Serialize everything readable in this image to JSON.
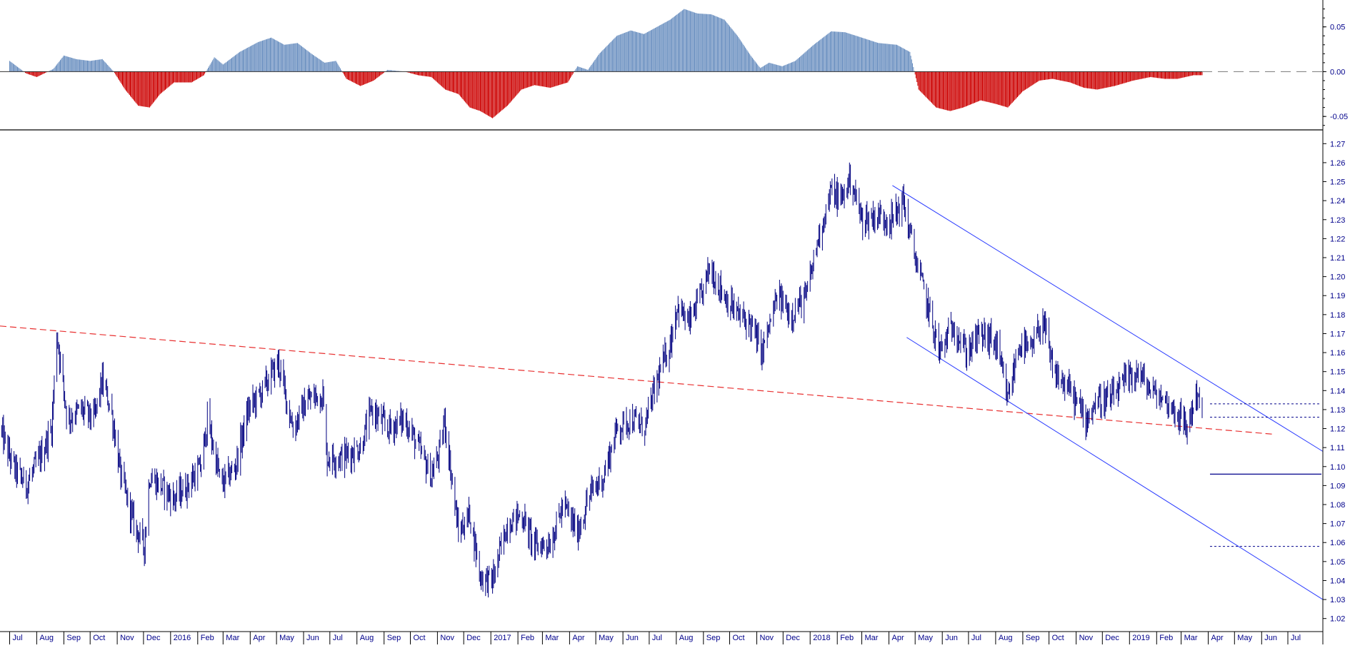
{
  "chart_data": [
    {
      "type": "bar",
      "panel": "oscillator",
      "ylim": [
        -0.065,
        0.08
      ],
      "y_ticks": [
        "0.05",
        "0.00",
        "-0.05"
      ],
      "y_tick_values": [
        0.05,
        0.0,
        -0.05
      ],
      "colors": {
        "positive": "#6a8fc0",
        "negative": "#cc0000",
        "zero_line": "#000000"
      },
      "description_points": [
        [
          "2015-07-01",
          0.012
        ],
        [
          "2015-07-20",
          -0.002
        ],
        [
          "2015-08-01",
          -0.006
        ],
        [
          "2015-08-20",
          0.003
        ],
        [
          "2015-09-01",
          0.018
        ],
        [
          "2015-09-15",
          0.014
        ],
        [
          "2015-10-01",
          0.012
        ],
        [
          "2015-10-15",
          0.014
        ],
        [
          "2015-10-28",
          0.0
        ],
        [
          "2015-11-10",
          -0.02
        ],
        [
          "2015-11-25",
          -0.038
        ],
        [
          "2015-12-08",
          -0.04
        ],
        [
          "2015-12-20",
          -0.025
        ],
        [
          "2016-01-05",
          -0.012
        ],
        [
          "2016-01-25",
          -0.012
        ],
        [
          "2016-02-08",
          -0.004
        ],
        [
          "2016-02-20",
          0.016
        ],
        [
          "2016-03-01",
          0.008
        ],
        [
          "2016-03-20",
          0.022
        ],
        [
          "2016-04-10",
          0.033
        ],
        [
          "2016-04-25",
          0.038
        ],
        [
          "2016-05-10",
          0.03
        ],
        [
          "2016-05-25",
          0.032
        ],
        [
          "2016-06-10",
          0.02
        ],
        [
          "2016-06-25",
          0.01
        ],
        [
          "2016-07-08",
          0.012
        ],
        [
          "2016-07-20",
          -0.008
        ],
        [
          "2016-08-05",
          -0.016
        ],
        [
          "2016-08-20",
          -0.01
        ],
        [
          "2016-09-05",
          0.002
        ],
        [
          "2016-09-25",
          0.0
        ],
        [
          "2016-10-10",
          -0.004
        ],
        [
          "2016-10-25",
          -0.006
        ],
        [
          "2016-11-10",
          -0.02
        ],
        [
          "2016-11-25",
          -0.025
        ],
        [
          "2016-12-08",
          -0.04
        ],
        [
          "2016-12-20",
          -0.044
        ],
        [
          "2017-01-03",
          -0.052
        ],
        [
          "2017-01-20",
          -0.038
        ],
        [
          "2017-02-05",
          -0.02
        ],
        [
          "2017-02-20",
          -0.015
        ],
        [
          "2017-03-10",
          -0.018
        ],
        [
          "2017-03-30",
          -0.012
        ],
        [
          "2017-04-10",
          0.006
        ],
        [
          "2017-04-22",
          0.002
        ],
        [
          "2017-05-05",
          0.02
        ],
        [
          "2017-05-25",
          0.04
        ],
        [
          "2017-06-10",
          0.046
        ],
        [
          "2017-06-25",
          0.042
        ],
        [
          "2017-07-10",
          0.05
        ],
        [
          "2017-07-25",
          0.058
        ],
        [
          "2017-08-10",
          0.07
        ],
        [
          "2017-08-25",
          0.065
        ],
        [
          "2017-09-10",
          0.064
        ],
        [
          "2017-09-25",
          0.058
        ],
        [
          "2017-10-10",
          0.04
        ],
        [
          "2017-10-25",
          0.018
        ],
        [
          "2017-11-05",
          0.004
        ],
        [
          "2017-11-15",
          0.01
        ],
        [
          "2017-11-30",
          0.006
        ],
        [
          "2017-12-15",
          0.012
        ],
        [
          "2018-01-05",
          0.03
        ],
        [
          "2018-01-25",
          0.045
        ],
        [
          "2018-02-10",
          0.044
        ],
        [
          "2018-03-01",
          0.038
        ],
        [
          "2018-03-20",
          0.032
        ],
        [
          "2018-04-10",
          0.03
        ],
        [
          "2018-04-25",
          0.022
        ],
        [
          "2018-05-05",
          -0.02
        ],
        [
          "2018-05-25",
          -0.04
        ],
        [
          "2018-06-10",
          -0.044
        ],
        [
          "2018-06-25",
          -0.04
        ],
        [
          "2018-07-15",
          -0.032
        ],
        [
          "2018-08-01",
          -0.036
        ],
        [
          "2018-08-15",
          -0.04
        ],
        [
          "2018-09-01",
          -0.022
        ],
        [
          "2018-09-20",
          -0.01
        ],
        [
          "2018-10-05",
          -0.008
        ],
        [
          "2018-10-25",
          -0.012
        ],
        [
          "2018-11-10",
          -0.018
        ],
        [
          "2018-11-25",
          -0.02
        ],
        [
          "2018-12-15",
          -0.016
        ],
        [
          "2019-01-05",
          -0.01
        ],
        [
          "2019-01-25",
          -0.006
        ],
        [
          "2019-02-10",
          -0.008
        ],
        [
          "2019-02-25",
          -0.008
        ],
        [
          "2019-03-15",
          -0.004
        ],
        [
          "2019-03-25",
          -0.004
        ]
      ]
    },
    {
      "type": "line",
      "panel": "price",
      "ylim": [
        1.015,
        1.275
      ],
      "y_ticks": [
        "1.27",
        "1.26",
        "1.25",
        "1.24",
        "1.23",
        "1.22",
        "1.21",
        "1.20",
        "1.19",
        "1.18",
        "1.17",
        "1.16",
        "1.15",
        "1.14",
        "1.13",
        "1.12",
        "1.11",
        "1.10",
        "1.09",
        "1.08",
        "1.07",
        "1.06",
        "1.05",
        "1.04",
        "1.03",
        "1.02"
      ],
      "y_tick_values": [
        1.27,
        1.26,
        1.25,
        1.24,
        1.23,
        1.22,
        1.21,
        1.2,
        1.19,
        1.18,
        1.17,
        1.16,
        1.15,
        1.14,
        1.13,
        1.12,
        1.11,
        1.1,
        1.09,
        1.08,
        1.07,
        1.06,
        1.05,
        1.04,
        1.03,
        1.02
      ],
      "colors": {
        "price": "#000080",
        "trend_support": "#e83030",
        "channel": "#2a3bff",
        "levels": "#00008b"
      },
      "x_range": [
        "2015-06-20",
        "2019-08-10"
      ],
      "series": [
        {
          "values": [
            [
              "2015-06-20",
              1.12
            ],
            [
              "2015-07-05",
              1.1
            ],
            [
              "2015-07-20",
              1.09
            ],
            [
              "2015-08-05",
              1.105
            ],
            [
              "2015-08-18",
              1.12
            ],
            [
              "2015-08-24",
              1.17
            ],
            [
              "2015-09-05",
              1.125
            ],
            [
              "2015-09-20",
              1.13
            ],
            [
              "2015-10-05",
              1.125
            ],
            [
              "2015-10-15",
              1.145
            ],
            [
              "2015-10-25",
              1.13
            ],
            [
              "2015-11-05",
              1.095
            ],
            [
              "2015-11-20",
              1.07
            ],
            [
              "2015-12-02",
              1.058
            ],
            [
              "2015-12-08",
              1.095
            ],
            [
              "2015-12-20",
              1.09
            ],
            [
              "2016-01-05",
              1.083
            ],
            [
              "2016-01-20",
              1.09
            ],
            [
              "2016-02-05",
              1.1
            ],
            [
              "2016-02-12",
              1.125
            ],
            [
              "2016-02-28",
              1.09
            ],
            [
              "2016-03-15",
              1.1
            ],
            [
              "2016-03-30",
              1.13
            ],
            [
              "2016-04-15",
              1.14
            ],
            [
              "2016-05-03",
              1.155
            ],
            [
              "2016-05-20",
              1.12
            ],
            [
              "2016-06-05",
              1.135
            ],
            [
              "2016-06-23",
              1.138
            ],
            [
              "2016-06-27",
              1.105
            ],
            [
              "2016-07-15",
              1.105
            ],
            [
              "2016-08-05",
              1.11
            ],
            [
              "2016-08-18",
              1.13
            ],
            [
              "2016-09-05",
              1.12
            ],
            [
              "2016-09-25",
              1.125
            ],
            [
              "2016-10-10",
              1.11
            ],
            [
              "2016-10-25",
              1.095
            ],
            [
              "2016-11-05",
              1.11
            ],
            [
              "2016-11-09",
              1.125
            ],
            [
              "2016-11-25",
              1.065
            ],
            [
              "2016-12-08",
              1.075
            ],
            [
              "2016-12-20",
              1.042
            ],
            [
              "2017-01-03",
              1.04
            ],
            [
              "2017-01-20",
              1.07
            ],
            [
              "2017-02-05",
              1.075
            ],
            [
              "2017-02-20",
              1.058
            ],
            [
              "2017-03-10",
              1.06
            ],
            [
              "2017-03-25",
              1.08
            ],
            [
              "2017-04-10",
              1.065
            ],
            [
              "2017-04-24",
              1.085
            ],
            [
              "2017-05-10",
              1.095
            ],
            [
              "2017-05-25",
              1.12
            ],
            [
              "2017-06-10",
              1.125
            ],
            [
              "2017-06-25",
              1.12
            ],
            [
              "2017-07-10",
              1.145
            ],
            [
              "2017-07-25",
              1.165
            ],
            [
              "2017-08-02",
              1.185
            ],
            [
              "2017-08-15",
              1.175
            ],
            [
              "2017-08-30",
              1.19
            ],
            [
              "2017-09-08",
              1.205
            ],
            [
              "2017-09-25",
              1.19
            ],
            [
              "2017-10-10",
              1.18
            ],
            [
              "2017-10-25",
              1.175
            ],
            [
              "2017-11-07",
              1.16
            ],
            [
              "2017-11-25",
              1.19
            ],
            [
              "2017-12-10",
              1.18
            ],
            [
              "2017-12-28",
              1.19
            ],
            [
              "2018-01-10",
              1.22
            ],
            [
              "2018-01-25",
              1.245
            ],
            [
              "2018-02-05",
              1.24
            ],
            [
              "2018-02-16",
              1.252
            ],
            [
              "2018-03-01",
              1.23
            ],
            [
              "2018-03-20",
              1.232
            ],
            [
              "2018-04-05",
              1.23
            ],
            [
              "2018-04-17",
              1.24
            ],
            [
              "2018-05-01",
              1.21
            ],
            [
              "2018-05-15",
              1.185
            ],
            [
              "2018-05-29",
              1.16
            ],
            [
              "2018-06-14",
              1.175
            ],
            [
              "2018-06-28",
              1.16
            ],
            [
              "2018-07-15",
              1.17
            ],
            [
              "2018-08-01",
              1.165
            ],
            [
              "2018-08-15",
              1.135
            ],
            [
              "2018-08-28",
              1.165
            ],
            [
              "2018-09-10",
              1.16
            ],
            [
              "2018-09-24",
              1.178
            ],
            [
              "2018-10-05",
              1.15
            ],
            [
              "2018-10-25",
              1.14
            ],
            [
              "2018-11-12",
              1.125
            ],
            [
              "2018-11-25",
              1.135
            ],
            [
              "2018-12-10",
              1.135
            ],
            [
              "2018-12-28",
              1.145
            ],
            [
              "2019-01-10",
              1.15
            ],
            [
              "2019-01-25",
              1.14
            ],
            [
              "2019-02-10",
              1.135
            ],
            [
              "2019-02-25",
              1.128
            ],
            [
              "2019-03-07",
              1.12
            ],
            [
              "2019-03-15",
              1.132
            ],
            [
              "2019-03-20",
              1.14
            ],
            [
              "2019-03-25",
              1.128
            ]
          ]
        }
      ],
      "annotations": {
        "red_support_line": [
          [
            "2015-06-20",
            1.174
          ],
          [
            "2019-06-15",
            1.117
          ]
        ],
        "channel_upper": [
          [
            "2018-04-05",
            1.248
          ],
          [
            "2019-08-10",
            1.108
          ]
        ],
        "channel_lower": [
          [
            "2018-04-05",
            1.168
          ],
          [
            "2019-08-10",
            1.03
          ]
        ],
        "levels_dotted": [
          1.133,
          1.126,
          1.058
        ],
        "level_solid": 1.096
      }
    }
  ],
  "x_axis": {
    "labels": [
      {
        "date": "2015-07-01",
        "text": "Jul"
      },
      {
        "date": "2015-08-01",
        "text": "Aug"
      },
      {
        "date": "2015-09-01",
        "text": "Sep"
      },
      {
        "date": "2015-10-01",
        "text": "Oct"
      },
      {
        "date": "2015-11-01",
        "text": "Nov"
      },
      {
        "date": "2015-12-01",
        "text": "Dec"
      },
      {
        "date": "2016-01-01",
        "text": "2016"
      },
      {
        "date": "2016-02-01",
        "text": "Feb"
      },
      {
        "date": "2016-03-01",
        "text": "Mar"
      },
      {
        "date": "2016-04-01",
        "text": "Apr"
      },
      {
        "date": "2016-05-01",
        "text": "May"
      },
      {
        "date": "2016-06-01",
        "text": "Jun"
      },
      {
        "date": "2016-07-01",
        "text": "Jul"
      },
      {
        "date": "2016-08-01",
        "text": "Aug"
      },
      {
        "date": "2016-09-01",
        "text": "Sep"
      },
      {
        "date": "2016-10-01",
        "text": "Oct"
      },
      {
        "date": "2016-11-01",
        "text": "Nov"
      },
      {
        "date": "2016-12-01",
        "text": "Dec"
      },
      {
        "date": "2017-01-01",
        "text": "2017"
      },
      {
        "date": "2017-02-01",
        "text": "Feb"
      },
      {
        "date": "2017-03-01",
        "text": "Mar"
      },
      {
        "date": "2017-04-01",
        "text": "Apr"
      },
      {
        "date": "2017-05-01",
        "text": "May"
      },
      {
        "date": "2017-06-01",
        "text": "Jun"
      },
      {
        "date": "2017-07-01",
        "text": "Jul"
      },
      {
        "date": "2017-08-01",
        "text": "Aug"
      },
      {
        "date": "2017-09-01",
        "text": "Sep"
      },
      {
        "date": "2017-10-01",
        "text": "Oct"
      },
      {
        "date": "2017-11-01",
        "text": "Nov"
      },
      {
        "date": "2017-12-01",
        "text": "Dec"
      },
      {
        "date": "2018-01-01",
        "text": "2018"
      },
      {
        "date": "2018-02-01",
        "text": "Feb"
      },
      {
        "date": "2018-03-01",
        "text": "Mar"
      },
      {
        "date": "2018-04-01",
        "text": "Apr"
      },
      {
        "date": "2018-05-01",
        "text": "May"
      },
      {
        "date": "2018-06-01",
        "text": "Jun"
      },
      {
        "date": "2018-07-01",
        "text": "Jul"
      },
      {
        "date": "2018-08-01",
        "text": "Aug"
      },
      {
        "date": "2018-09-01",
        "text": "Sep"
      },
      {
        "date": "2018-10-01",
        "text": "Oct"
      },
      {
        "date": "2018-11-01",
        "text": "Nov"
      },
      {
        "date": "2018-12-01",
        "text": "Dec"
      },
      {
        "date": "2019-01-01",
        "text": "2019"
      },
      {
        "date": "2019-02-01",
        "text": "Feb"
      },
      {
        "date": "2019-03-01",
        "text": "Mar"
      },
      {
        "date": "2019-04-01",
        "text": "Apr"
      },
      {
        "date": "2019-05-01",
        "text": "May"
      },
      {
        "date": "2019-06-01",
        "text": "Jun"
      },
      {
        "date": "2019-07-01",
        "text": "Jul"
      }
    ]
  }
}
